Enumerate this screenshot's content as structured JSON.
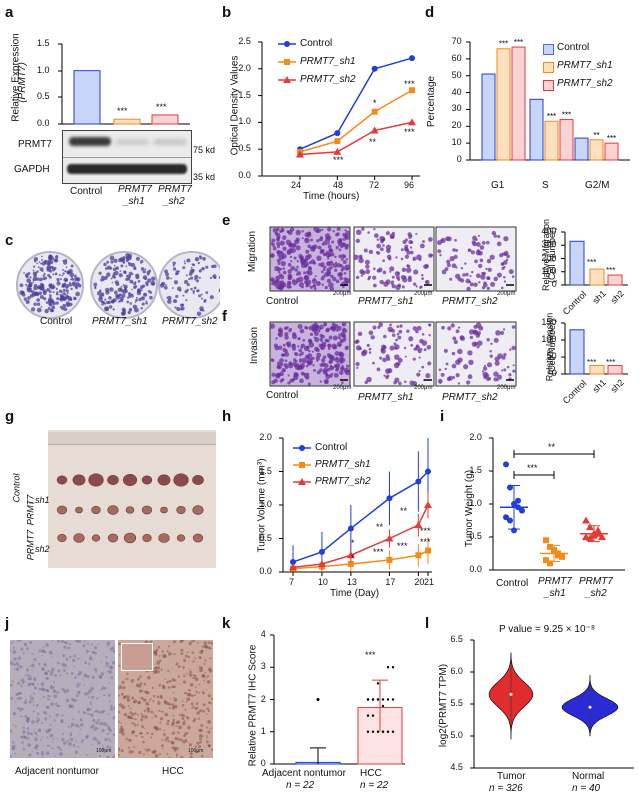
{
  "panels": {
    "a": {
      "label": "a",
      "ylabel1": "Relative Expression",
      "ylabel2": "(PRMT7)",
      "yticks": [
        "0.0",
        "0.5",
        "1.0",
        "1.5"
      ],
      "bars": [
        {
          "name": "Control",
          "value": 1.0,
          "err": 0.04,
          "color": "#4f6bd8",
          "fill": "#c9d6f7"
        },
        {
          "name": "PRMT7_sh1",
          "value": 0.09,
          "err": 0.02,
          "color": "#f28a1c",
          "fill": "#fde0bf"
        },
        {
          "name": "PRMT7_sh2",
          "value": 0.17,
          "err": 0.03,
          "color": "#e23b3b",
          "fill": "#fbd3d3"
        }
      ],
      "stars": [
        "***",
        "***"
      ],
      "blot_rows": [
        "PRMT7",
        "GAPDH"
      ],
      "kd1": "75 kd",
      "kd2": "35 kd",
      "xlabels": [
        "Control",
        "PRMT7",
        "_sh1",
        "PRMT7",
        "_sh2"
      ]
    },
    "b": {
      "label": "b",
      "ylabel": "Optical Density Values",
      "xlabel": "Time (hours)",
      "xticks": [
        "24",
        "48",
        "72",
        "96"
      ],
      "yticks": [
        "0.0",
        "0.5",
        "1.0",
        "1.5",
        "2.0",
        "2.5"
      ],
      "legend": [
        "Control",
        "PRMT7_sh1",
        "PRMT7_sh2"
      ],
      "stars_sh1": [
        "*",
        "***"
      ],
      "stars_sh2": [
        "***",
        "**",
        "***"
      ]
    },
    "d": {
      "label": "d",
      "ylabel": "Percentage",
      "yticks": [
        "0",
        "10",
        "20",
        "30",
        "40",
        "50",
        "60",
        "70"
      ],
      "groups": [
        "G1",
        "S",
        "G2/M"
      ],
      "legend": [
        "Control",
        "PRMT7_sh1",
        "PRMT7_sh2"
      ]
    },
    "c": {
      "label": "c",
      "captions": [
        "Control",
        "PRMT7_sh1",
        "PRMT7_sh2"
      ]
    },
    "e": {
      "label": "e",
      "rowlabel": "Migration",
      "scale": "200μm",
      "ylabel1": "Relative Migration",
      "ylabel2": "(Cell Number)",
      "yticks": [
        "0",
        "100",
        "200",
        "300",
        "400"
      ],
      "xticks": [
        "Control",
        "sh1",
        "sh2"
      ],
      "stars": [
        "***",
        "***"
      ]
    },
    "f": {
      "label": "f",
      "rowlabel": "Invasion",
      "scale": "200μm",
      "ylabel1": "Relative Invasion",
      "ylabel2": "(Cell Number)",
      "yticks": [
        "0",
        "50",
        "100",
        "150"
      ],
      "xticks": [
        "Control",
        "sh1",
        "sh2"
      ],
      "stars": [
        "***",
        "***"
      ],
      "captions": [
        "Control",
        "PRMT7_sh1",
        "PRMT7_sh2"
      ]
    },
    "g": {
      "label": "g",
      "rows": [
        "Control",
        "PRMT7",
        "_sh1",
        "PRMT7",
        "_sh2"
      ]
    },
    "h": {
      "label": "h",
      "ylabel": "Tumor Volume (mm³)",
      "xlabel": "Time (Day)",
      "xticks": [
        "7",
        "10",
        "13",
        "17",
        "20",
        "21"
      ],
      "yticks": [
        "0.0",
        "0.5",
        "1.0",
        "1.5",
        "2.0"
      ],
      "legend": [
        "Control",
        "PRMT7_sh1",
        "PRMT7_sh2"
      ],
      "stars_top": [
        "*",
        "**",
        "**",
        "***"
      ],
      "stars_bot": [
        "*",
        "***",
        "***",
        "***"
      ]
    },
    "i": {
      "label": "i",
      "ylabel": "Tumor Weight (g)",
      "yticks": [
        "0.0",
        "0.5",
        "1.0",
        "1.5",
        "2.0"
      ],
      "xlabels": [
        "Control",
        "PRMT7",
        "_sh1",
        "PRMT7",
        "_sh2"
      ],
      "sig1": "***",
      "sig2": "**"
    },
    "j": {
      "label": "j",
      "captions": [
        "Adjacent nontumor",
        "HCC"
      ],
      "scale": "100μm"
    },
    "k": {
      "label": "k",
      "ylabel": "Relative PRMT7 IHC Score",
      "yticks": [
        "0",
        "1",
        "2",
        "3",
        "4"
      ],
      "xlabels": [
        "Adjacent nontumor",
        "HCC"
      ],
      "n": [
        "n = 22",
        "n = 22"
      ],
      "stars": "***"
    },
    "l": {
      "label": "l",
      "title": "P value = 9.25 × 10⁻⁸",
      "ylabel": "log2(PRMT7 TPM)",
      "yticks": [
        "4.5",
        "5.0",
        "5.5",
        "6.0",
        "6.5"
      ],
      "xlabels": [
        "Tumor",
        "Normal"
      ],
      "n": [
        "n = 326",
        "n = 40"
      ]
    }
  },
  "chart_data": [
    {
      "type": "bar",
      "panel": "a",
      "categories": [
        "Control",
        "PRMT7_sh1",
        "PRMT7_sh2"
      ],
      "values": [
        1.0,
        0.09,
        0.17
      ],
      "ylim": [
        0,
        1.5
      ],
      "ylabel": "Relative Expression (PRMT7)"
    },
    {
      "type": "line",
      "panel": "b",
      "x": [
        24,
        48,
        72,
        96
      ],
      "series": [
        {
          "name": "Control",
          "values": [
            0.5,
            0.8,
            2.0,
            2.2
          ]
        },
        {
          "name": "PRMT7_sh1",
          "values": [
            0.45,
            0.65,
            1.2,
            1.6
          ]
        },
        {
          "name": "PRMT7_sh2",
          "values": [
            0.4,
            0.45,
            0.85,
            1.0
          ]
        }
      ],
      "ylim": [
        0,
        2.5
      ],
      "xlabel": "Time (hours)",
      "ylabel": "Optical Density Values"
    },
    {
      "type": "bar",
      "panel": "d",
      "categories": [
        "G1",
        "S",
        "G2/M"
      ],
      "series": [
        {
          "name": "Control",
          "values": [
            51,
            36,
            13
          ]
        },
        {
          "name": "PRMT7_sh1",
          "values": [
            66,
            23,
            12
          ]
        },
        {
          "name": "PRMT7_sh2",
          "values": [
            67,
            24,
            10
          ]
        }
      ],
      "ylim": [
        0,
        70
      ],
      "ylabel": "Percentage"
    },
    {
      "type": "bar",
      "panel": "e",
      "categories": [
        "Control",
        "sh1",
        "sh2"
      ],
      "values": [
        330,
        120,
        75
      ],
      "ylim": [
        0,
        400
      ],
      "ylabel": "Relative Migration (Cell Number)"
    },
    {
      "type": "bar",
      "panel": "f",
      "categories": [
        "Control",
        "sh1",
        "sh2"
      ],
      "values": [
        130,
        25,
        25
      ],
      "ylim": [
        0,
        150
      ],
      "ylabel": "Relative Invasion (Cell Number)"
    },
    {
      "type": "line",
      "panel": "h",
      "x": [
        7,
        10,
        13,
        17,
        20,
        21
      ],
      "series": [
        {
          "name": "Control",
          "values": [
            0.15,
            0.3,
            0.65,
            1.1,
            1.35,
            1.5
          ]
        },
        {
          "name": "PRMT7_sh1",
          "values": [
            0.05,
            0.08,
            0.12,
            0.18,
            0.25,
            0.32
          ]
        },
        {
          "name": "PRMT7_sh2",
          "values": [
            0.07,
            0.12,
            0.25,
            0.5,
            0.7,
            1.0
          ]
        }
      ],
      "ylim": [
        0,
        2.0
      ],
      "xlabel": "Time (Day)",
      "ylabel": "Tumor Volume (mm³)"
    },
    {
      "type": "scatter",
      "panel": "i",
      "categories": [
        "Control",
        "PRMT7_sh1",
        "PRMT7_sh2"
      ],
      "means": [
        0.95,
        0.25,
        0.55
      ],
      "ylim": [
        0,
        2.0
      ],
      "ylabel": "Tumor Weight (g)"
    },
    {
      "type": "bar",
      "panel": "k",
      "categories": [
        "Adjacent nontumor",
        "HCC"
      ],
      "values": [
        0.05,
        1.75
      ],
      "ylim": [
        0,
        4
      ],
      "ylabel": "Relative PRMT7 IHC Score"
    },
    {
      "type": "violin",
      "panel": "l",
      "categories": [
        "Tumor",
        "Normal"
      ],
      "medians": [
        5.65,
        5.45
      ],
      "ylim": [
        4.5,
        6.5
      ],
      "ylabel": "log2(PRMT7 TPM)"
    }
  ],
  "colors": {
    "control": "#1f3fd6",
    "sh1": "#f28a1c",
    "sh2": "#e23b3b"
  }
}
